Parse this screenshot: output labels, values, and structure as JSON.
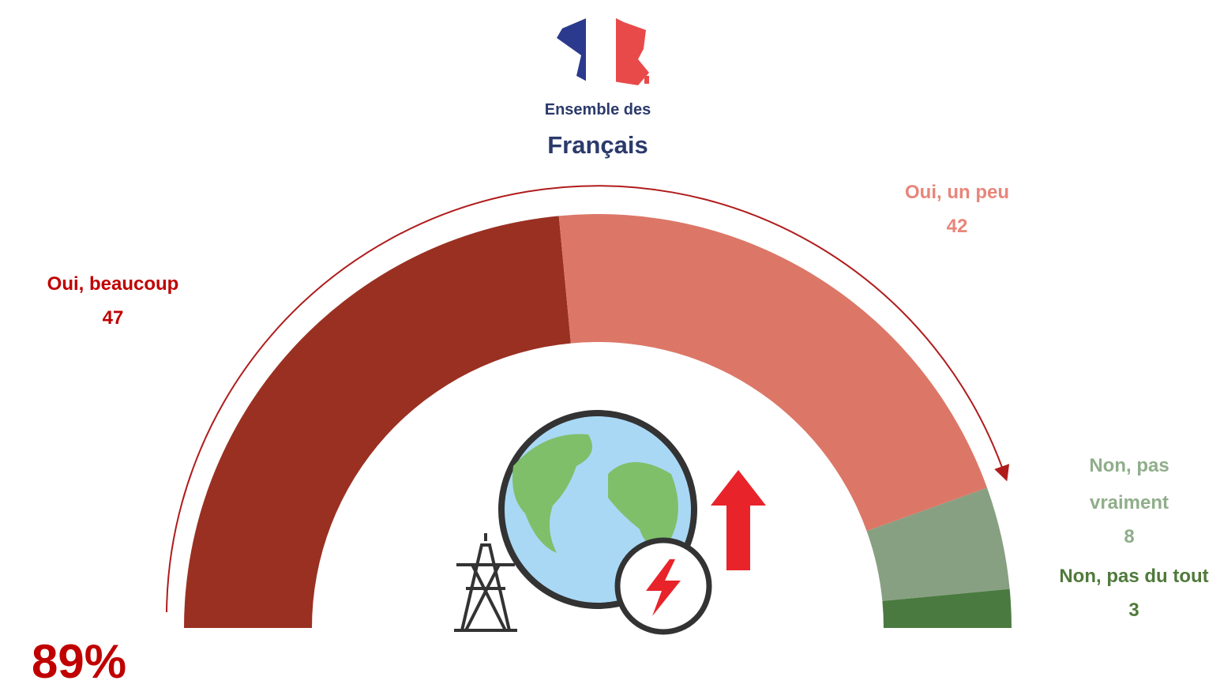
{
  "chart_data": {
    "type": "half-donut",
    "subtitle": "Ensemble des",
    "title": "Français",
    "categories": [
      "Oui, beaucoup",
      "Oui, un peu",
      "Non, pas vraiment",
      "Non, pas du tout"
    ],
    "values": [
      47,
      42,
      8,
      3
    ],
    "colors": [
      "#9a3022",
      "#dc7767",
      "#88a082",
      "#4a7a40"
    ],
    "label_colors": [
      "#c00000",
      "#e8857a",
      "#8fae8a",
      "#4f7a3a"
    ],
    "annotations": [
      {
        "text": "89%",
        "color": "#c00000"
      }
    ]
  }
}
